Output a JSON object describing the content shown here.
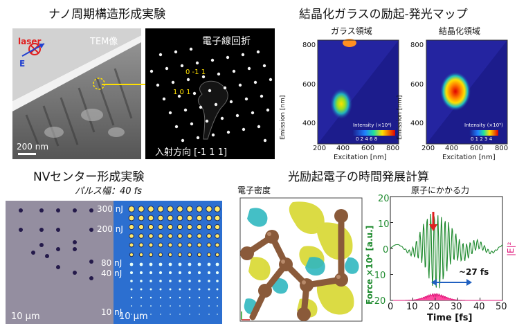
{
  "nano": {
    "title": "ナノ周期構造形成実験",
    "laser": "laser",
    "e_label": "E",
    "tem_label": "TEM像",
    "scale": "200 nm",
    "diff_title": "電子線回折",
    "spot_a": "0 -1 1",
    "spot_b": "1 0 1",
    "incidence": "入射方向 [-1 1 1]"
  },
  "map": {
    "title": "結晶化ガラスの励起-発光マップ",
    "glass_title": "ガラス領域",
    "cryst_title": "結晶化領域",
    "ylabel": "Emission [nm]",
    "xlabel": "Excitation [nm]",
    "y_ticks": [
      "800",
      "600",
      "400"
    ],
    "x_ticks": [
      "200",
      "400",
      "600",
      "800"
    ],
    "glass_cbar_title": "Intensity (×10⁴)",
    "glass_cbar_ticks": "0 2 4 6 8",
    "cryst_cbar_title": "Intensity (×10⁵)",
    "cryst_cbar_ticks": "0 1 2 3 4"
  },
  "nv": {
    "title": "NVセンター形成実験",
    "pulse": "パルス幅：40 fs",
    "e300": "300 nJ",
    "e200": "200 nJ",
    "e80": "80 nJ",
    "e40": "40 nJ",
    "e10": "10 nJ",
    "scale_left": "10 μm",
    "scale_right": "10 μm"
  },
  "sim": {
    "title": "光励起電子の時間発展計算",
    "density_label": "電子密度",
    "force_label": "原子にかかる力",
    "ylabel_left": "Force ×10⁴ [a.u.]",
    "ylabel_right": "|E|²",
    "xlabel": "Time [fs]",
    "y_ticks": [
      "20",
      "10",
      "0",
      "-10",
      "-20"
    ],
    "x_ticks": [
      "0",
      "10",
      "20",
      "30",
      "40",
      "50"
    ],
    "duration": "~27 fs",
    "colors": {
      "force": "#1e8a2e",
      "field": "#e0167a",
      "arrow": "#e02020",
      "span": "#2060c0"
    }
  }
}
